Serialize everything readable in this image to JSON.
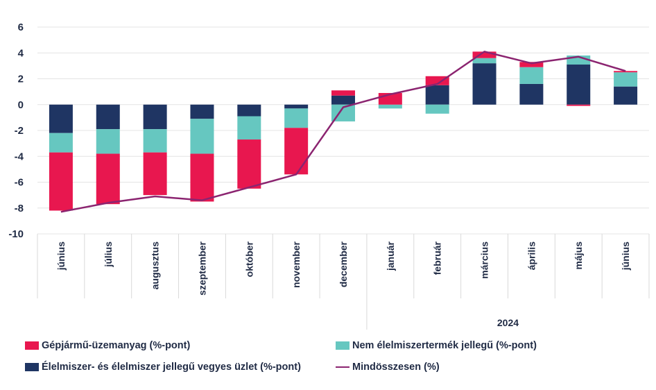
{
  "chart_data": {
    "type": "bar",
    "stacked": true,
    "categories": [
      "június",
      "július",
      "augusztus",
      "szeptember",
      "október",
      "november",
      "december",
      "január",
      "február",
      "március",
      "április",
      "május",
      "június"
    ],
    "year_label": "2024",
    "ylim": [
      -10,
      6
    ],
    "yticks": [
      6,
      4,
      2,
      0,
      -2,
      -4,
      -6,
      -8,
      -10
    ],
    "grid": true,
    "series": [
      {
        "name": "Élelmiszer- és élelmiszer jellegű vegyes üzlet (%-pont)",
        "color": "#1f3563",
        "values": [
          -2.2,
          -1.9,
          -1.9,
          -1.1,
          -0.9,
          -0.3,
          0.7,
          0.0,
          1.5,
          3.2,
          1.6,
          3.1,
          1.4
        ]
      },
      {
        "name": "Nem élelmiszertermék jellegű (%-pont)",
        "color": "#66c7c0",
        "values": [
          -1.5,
          -1.9,
          -1.8,
          -2.7,
          -1.8,
          -1.5,
          -1.3,
          -0.3,
          -0.7,
          0.4,
          1.3,
          0.7,
          1.1
        ]
      },
      {
        "name": "Gépjármű-üzemanyag (%-pont)",
        "color": "#e8174f",
        "values": [
          -4.5,
          -3.9,
          -3.3,
          -3.7,
          -3.8,
          -3.6,
          0.4,
          0.9,
          0.7,
          0.5,
          0.4,
          -0.1,
          0.1
        ]
      }
    ],
    "line": {
      "name": "Mindösszesen (%)",
      "color": "#8b2470",
      "values": [
        -8.3,
        -7.6,
        -7.1,
        -7.4,
        -6.4,
        -5.4,
        -0.2,
        0.8,
        1.6,
        4.1,
        3.2,
        3.7,
        2.6
      ]
    }
  },
  "legend": {
    "fuel": "Gépjármű-üzemanyag (%-pont)",
    "nonfood": "Nem élelmiszertermék jellegű (%-pont)",
    "food": "Élelmiszer- és élelmiszer jellegű vegyes üzlet (%-pont)",
    "total": "Mindösszesen (%)"
  },
  "colors": {
    "fuel": "#e8174f",
    "nonfood": "#66c7c0",
    "food": "#1f3563",
    "total": "#8b2470"
  }
}
